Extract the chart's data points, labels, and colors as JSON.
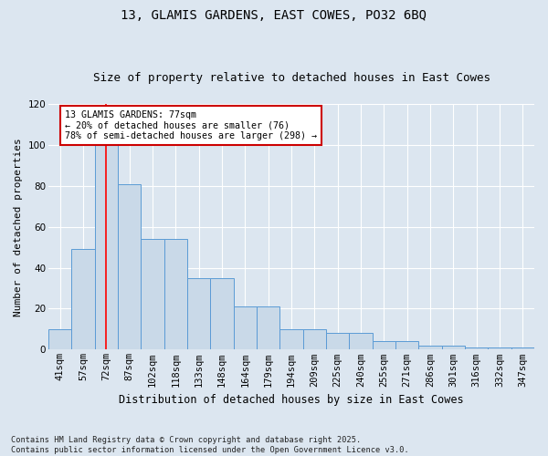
{
  "title1": "13, GLAMIS GARDENS, EAST COWES, PO32 6BQ",
  "title2": "Size of property relative to detached houses in East Cowes",
  "xlabel": "Distribution of detached houses by size in East Cowes",
  "ylabel": "Number of detached properties",
  "categories": [
    "41sqm",
    "57sqm",
    "72sqm",
    "87sqm",
    "102sqm",
    "118sqm",
    "133sqm",
    "148sqm",
    "164sqm",
    "179sqm",
    "194sqm",
    "209sqm",
    "225sqm",
    "240sqm",
    "255sqm",
    "271sqm",
    "286sqm",
    "301sqm",
    "316sqm",
    "332sqm",
    "347sqm"
  ],
  "bar_heights": [
    10,
    49,
    100,
    81,
    54,
    54,
    35,
    35,
    21,
    21,
    10,
    10,
    8,
    8,
    4,
    4,
    2,
    2,
    1,
    1,
    1
  ],
  "bar_color": "#c9d9e8",
  "bar_edge_color": "#5b9bd5",
  "red_line_x": 2,
  "annotation_text": "13 GLAMIS GARDENS: 77sqm\n← 20% of detached houses are smaller (76)\n78% of semi-detached houses are larger (298) →",
  "annotation_box_color": "#ffffff",
  "annotation_box_edge": "#cc0000",
  "ylim": [
    0,
    120
  ],
  "yticks": [
    0,
    20,
    40,
    60,
    80,
    100,
    120
  ],
  "footer": "Contains HM Land Registry data © Crown copyright and database right 2025.\nContains public sector information licensed under the Open Government Licence v3.0.",
  "bg_color": "#dce6f0",
  "plot_bg_color": "#dce6f0",
  "title_fontsize": 10,
  "subtitle_fontsize": 9,
  "tick_fontsize": 7.5,
  "ylabel_fontsize": 8,
  "xlabel_fontsize": 8.5
}
